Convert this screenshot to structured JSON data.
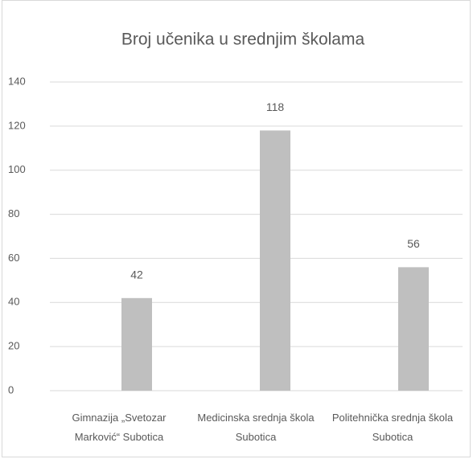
{
  "chart_data": {
    "type": "bar",
    "title": "Broj učenika u srednjim školama",
    "categories": [
      "Gimnazija „Svetozar Marković“ Subotica",
      "Medicinska srednja škola Subotica",
      "Politehnička srednja škola Subotica"
    ],
    "values": [
      42,
      118,
      56
    ],
    "color": "#bfbfbf",
    "ylim": [
      0,
      140
    ],
    "yticks": [
      0,
      20,
      40,
      60,
      80,
      100,
      120,
      140
    ],
    "grid": true
  }
}
